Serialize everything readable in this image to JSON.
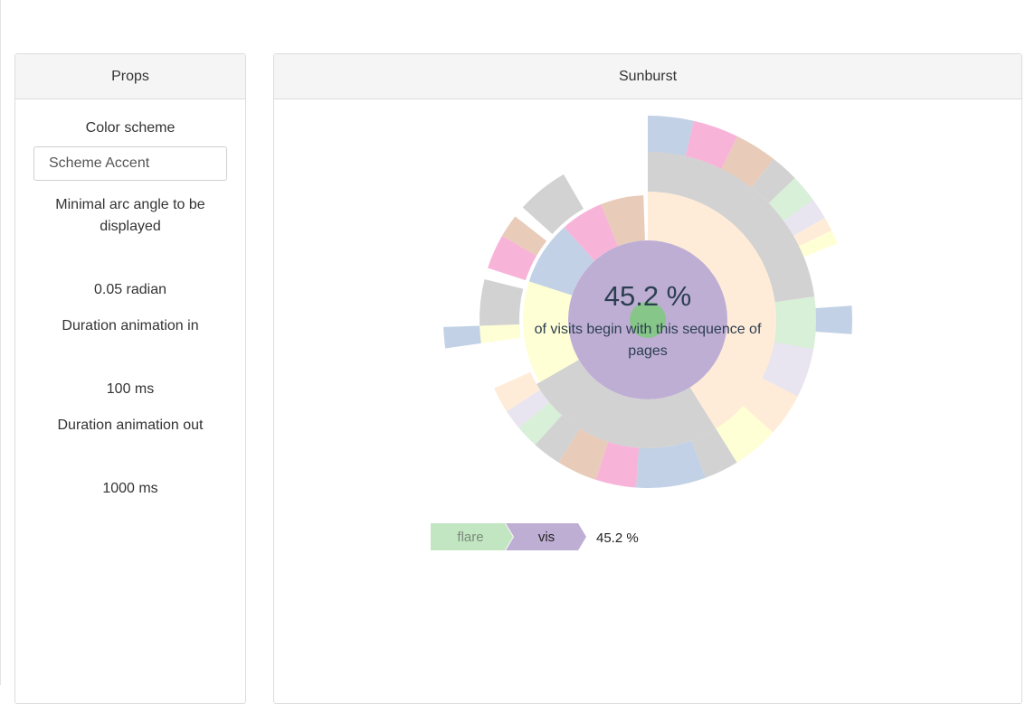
{
  "props": {
    "title": "Props",
    "color_scheme_label": "Color scheme",
    "color_scheme_value": "Scheme Accent",
    "min_arc_label": "Minimal arc angle to be displayed",
    "min_arc_value": "0.05 radian",
    "anim_in_label": "Duration animation in",
    "anim_in_value": "100 ms",
    "anim_out_label": "Duration animation out",
    "anim_out_value": "1000 ms"
  },
  "sunburst": {
    "title": "Sunburst",
    "center_percent": "45.2 %",
    "center_caption_line1": "of visits begin with this sequence of",
    "center_caption_line2": "pages",
    "breadcrumb": {
      "items": [
        {
          "label": "flare",
          "color": "#c2e6c2"
        },
        {
          "label": "vis",
          "color": "#beaed4"
        }
      ],
      "percent": "45.2 %"
    }
  },
  "chart_data": {
    "type": "sunburst",
    "highlighted_path": [
      "flare",
      "vis"
    ],
    "highlighted_share_percent": 45.2,
    "palette": [
      "#7fc97f",
      "#beaed4",
      "#fdc086",
      "#ffff99",
      "#386cb0",
      "#f0027f",
      "#bf5b17",
      "#666666"
    ]
  }
}
